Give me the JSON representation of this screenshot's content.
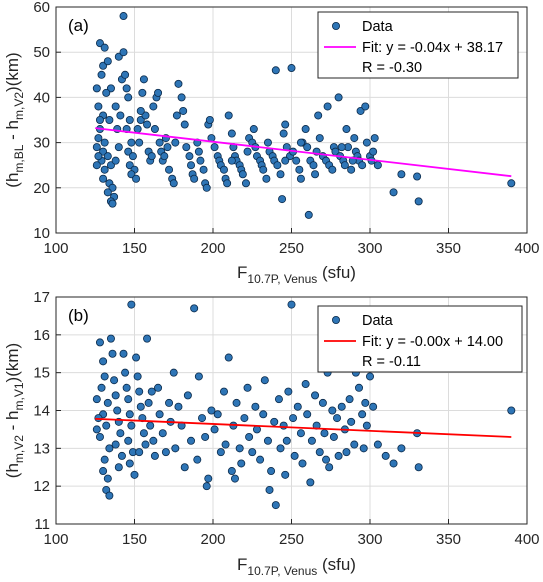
{
  "chart_data": [
    {
      "type": "scatter",
      "panel_label": "(a)",
      "xlabel": {
        "main": "F",
        "sub": "10.7P, Venus",
        "unit": " (sfu)"
      },
      "ylabel": {
        "main": "(h",
        "sub1": "m,BL",
        "mid": " - h",
        "sub2": "m,V2",
        "end": ")(km)"
      },
      "xlim": [
        100,
        400
      ],
      "ylim": [
        10,
        60
      ],
      "xticks": [
        "100",
        "150",
        "200",
        "250",
        "300",
        "350",
        "400"
      ],
      "yticks": [
        "10",
        "20",
        "30",
        "40",
        "50",
        "60"
      ],
      "grid": true,
      "legend_position": "top-right",
      "legend": {
        "data": "Data",
        "fit": "Fit: y = -0.04x + 38.17",
        "r": "R = -0.30"
      },
      "fit_line": {
        "color": "#ff00ff",
        "x": [
          125,
          390
        ],
        "y": [
          33.2,
          22.57
        ]
      },
      "marker_color": "#2e75b6",
      "points": [
        [
          128,
          52
        ],
        [
          131,
          51
        ],
        [
          130,
          47
        ],
        [
          133,
          48
        ],
        [
          129,
          45
        ],
        [
          135,
          42
        ],
        [
          132,
          41
        ],
        [
          130,
          36
        ],
        [
          134,
          35
        ],
        [
          128,
          33
        ],
        [
          131,
          30
        ],
        [
          130,
          28
        ],
        [
          133,
          27
        ],
        [
          129,
          26
        ],
        [
          135,
          25
        ],
        [
          131,
          24
        ],
        [
          130,
          22
        ],
        [
          134,
          21
        ],
        [
          136,
          20
        ],
        [
          133,
          19
        ],
        [
          137,
          18
        ],
        [
          135,
          17
        ],
        [
          136,
          16.5
        ],
        [
          138,
          26
        ],
        [
          140,
          29
        ],
        [
          139,
          33
        ],
        [
          141,
          36
        ],
        [
          138,
          38
        ],
        [
          142,
          44
        ],
        [
          140,
          49
        ],
        [
          143,
          50
        ],
        [
          144,
          45
        ],
        [
          145,
          42
        ],
        [
          146,
          40
        ],
        [
          147,
          35
        ],
        [
          145,
          33
        ],
        [
          148,
          30
        ],
        [
          146,
          28
        ],
        [
          149,
          27
        ],
        [
          147,
          25
        ],
        [
          150,
          24
        ],
        [
          148,
          23
        ],
        [
          151,
          22
        ],
        [
          153,
          30
        ],
        [
          152,
          33
        ],
        [
          154,
          35
        ],
        [
          155,
          41
        ],
        [
          156,
          44
        ],
        [
          157,
          36
        ],
        [
          158,
          34
        ],
        [
          159,
          28
        ],
        [
          160,
          26
        ],
        [
          161,
          27
        ],
        [
          163,
          33
        ],
        [
          162,
          38
        ],
        [
          164,
          40
        ],
        [
          165,
          41
        ],
        [
          166,
          30
        ],
        [
          167,
          28
        ],
        [
          168,
          26
        ],
        [
          170,
          31
        ],
        [
          171,
          29
        ],
        [
          169,
          27
        ],
        [
          172,
          24
        ],
        [
          174,
          22
        ],
        [
          175,
          21
        ],
        [
          176,
          30
        ],
        [
          177,
          36
        ],
        [
          178,
          43
        ],
        [
          180,
          40
        ],
        [
          181,
          37
        ],
        [
          182,
          34
        ],
        [
          183,
          29
        ],
        [
          185,
          27
        ],
        [
          186,
          25
        ],
        [
          187,
          23
        ],
        [
          188,
          22
        ],
        [
          190,
          30
        ],
        [
          191,
          28
        ],
        [
          192,
          26
        ],
        [
          194,
          24
        ],
        [
          195,
          21
        ],
        [
          196,
          20
        ],
        [
          197,
          34
        ],
        [
          198,
          35
        ],
        [
          199,
          31
        ],
        [
          201,
          29
        ],
        [
          203,
          27
        ],
        [
          204,
          26
        ],
        [
          205,
          25
        ],
        [
          207,
          24
        ],
        [
          208,
          22
        ],
        [
          209,
          21
        ],
        [
          210,
          36
        ],
        [
          212,
          32
        ],
        [
          213,
          29
        ],
        [
          214,
          27
        ],
        [
          215,
          26
        ],
        [
          217,
          25
        ],
        [
          218,
          24
        ],
        [
          219,
          23
        ],
        [
          221,
          21
        ],
        [
          222,
          28
        ],
        [
          223,
          31
        ],
        [
          225,
          30
        ],
        [
          226,
          33
        ],
        [
          227,
          29
        ],
        [
          228,
          27
        ],
        [
          230,
          26
        ],
        [
          231,
          25
        ],
        [
          232,
          24
        ],
        [
          234,
          22
        ],
        [
          235,
          30
        ],
        [
          236,
          28
        ],
        [
          238,
          27
        ],
        [
          239,
          26
        ],
        [
          240,
          46
        ],
        [
          241,
          25
        ],
        [
          243,
          23
        ],
        [
          244,
          17.5
        ],
        [
          245,
          32
        ],
        [
          246,
          34
        ],
        [
          247,
          29
        ],
        [
          249,
          27
        ],
        [
          250,
          46.5
        ],
        [
          251,
          28
        ],
        [
          253,
          26
        ],
        [
          255,
          24
        ],
        [
          256,
          22
        ],
        [
          257,
          30
        ],
        [
          259,
          33
        ],
        [
          260,
          29
        ],
        [
          261,
          14
        ],
        [
          262,
          26
        ],
        [
          264,
          25
        ],
        [
          265,
          23
        ],
        [
          266,
          28
        ],
        [
          267,
          36
        ],
        [
          268,
          31
        ],
        [
          270,
          27
        ],
        [
          272,
          26
        ],
        [
          273,
          38
        ],
        [
          274,
          25
        ],
        [
          276,
          24
        ],
        [
          277,
          29
        ],
        [
          278,
          28
        ],
        [
          280,
          40
        ],
        [
          281,
          27
        ],
        [
          283,
          26
        ],
        [
          284,
          25
        ],
        [
          285,
          33
        ],
        [
          286,
          29
        ],
        [
          288,
          24
        ],
        [
          290,
          31
        ],
        [
          291,
          28
        ],
        [
          292,
          27
        ],
        [
          293,
          26
        ],
        [
          294,
          37
        ],
        [
          295,
          25
        ],
        [
          297,
          38
        ],
        [
          298,
          30
        ],
        [
          300,
          27
        ],
        [
          301,
          26
        ],
        [
          303,
          31
        ],
        [
          305,
          25
        ],
        [
          315,
          19
        ],
        [
          320,
          23
        ],
        [
          330,
          22.5
        ],
        [
          331,
          17
        ],
        [
          390,
          21
        ],
        [
          126,
          42
        ],
        [
          127,
          38
        ],
        [
          128,
          35
        ],
        [
          127,
          31
        ],
        [
          126,
          29
        ],
        [
          127,
          27
        ],
        [
          126,
          25
        ],
        [
          143,
          58
        ],
        [
          154,
          37
        ],
        [
          212,
          26
        ],
        [
          246,
          26
        ],
        [
          256,
          30
        ],
        [
          282,
          29
        ],
        [
          289,
          26
        ],
        [
          302,
          28
        ]
      ]
    },
    {
      "type": "scatter",
      "panel_label": "(b)",
      "xlabel": {
        "main": "F",
        "sub": "10.7P, Venus",
        "unit": " (sfu)"
      },
      "ylabel": {
        "main": "(h",
        "sub1": "m,V2",
        "mid": " - h",
        "sub2": "m,V1",
        "end": ")(km)"
      },
      "xlim": [
        100,
        400
      ],
      "ylim": [
        11,
        17
      ],
      "xticks": [
        "100",
        "150",
        "200",
        "250",
        "300",
        "350",
        "400"
      ],
      "yticks": [
        "11",
        "12",
        "13",
        "14",
        "15",
        "16",
        "17"
      ],
      "grid": true,
      "legend_position": "top-right",
      "legend": {
        "data": "Data",
        "fit": "Fit: y = -0.00x + 14.00",
        "r": "R = -0.11"
      },
      "fit_line": {
        "color": "#ff0000",
        "x": [
          125,
          390
        ],
        "y": [
          13.78,
          13.3
        ]
      },
      "marker_color": "#2e75b6",
      "points": [
        [
          128,
          15.8
        ],
        [
          130,
          15.3
        ],
        [
          131,
          14.9
        ],
        [
          129,
          14.6
        ],
        [
          133,
          14.2
        ],
        [
          130,
          13.9
        ],
        [
          132,
          13.6
        ],
        [
          128,
          13.3
        ],
        [
          134,
          13.0
        ],
        [
          131,
          12.7
        ],
        [
          130,
          12.4
        ],
        [
          133,
          12.2
        ],
        [
          132,
          11.9
        ],
        [
          134,
          11.75
        ],
        [
          135,
          15.9
        ],
        [
          136,
          15.5
        ],
        [
          137,
          14.8
        ],
        [
          138,
          14.4
        ],
        [
          139,
          14.0
        ],
        [
          140,
          13.7
        ],
        [
          141,
          13.4
        ],
        [
          138,
          13.1
        ],
        [
          142,
          12.8
        ],
        [
          140,
          12.5
        ],
        [
          143,
          15.5
        ],
        [
          144,
          15.0
        ],
        [
          145,
          14.6
        ],
        [
          146,
          14.3
        ],
        [
          147,
          13.9
        ],
        [
          148,
          13.6
        ],
        [
          146,
          13.2
        ],
        [
          149,
          12.9
        ],
        [
          147,
          12.6
        ],
        [
          150,
          12.3
        ],
        [
          148,
          16.8
        ],
        [
          151,
          15.4
        ],
        [
          152,
          14.9
        ],
        [
          153,
          14.5
        ],
        [
          154,
          14.1
        ],
        [
          155,
          13.8
        ],
        [
          156,
          13.4
        ],
        [
          157,
          13.1
        ],
        [
          158,
          15.9
        ],
        [
          159,
          14.2
        ],
        [
          160,
          13.6
        ],
        [
          162,
          13.2
        ],
        [
          163,
          12.8
        ],
        [
          165,
          14.6
        ],
        [
          166,
          13.9
        ],
        [
          168,
          13.4
        ],
        [
          170,
          12.9
        ],
        [
          172,
          14.2
        ],
        [
          173,
          13.7
        ],
        [
          175,
          15.0
        ],
        [
          176,
          13.0
        ],
        [
          178,
          14.1
        ],
        [
          180,
          13.6
        ],
        [
          182,
          12.5
        ],
        [
          184,
          14.4
        ],
        [
          186,
          13.2
        ],
        [
          188,
          16.7
        ],
        [
          190,
          12.7
        ],
        [
          191,
          14.9
        ],
        [
          193,
          13.8
        ],
        [
          195,
          13.3
        ],
        [
          197,
          12.2
        ],
        [
          199,
          14.0
        ],
        [
          201,
          13.5
        ],
        [
          203,
          13.9
        ],
        [
          205,
          12.9
        ],
        [
          207,
          14.5
        ],
        [
          208,
          13.1
        ],
        [
          210,
          15.4
        ],
        [
          212,
          12.4
        ],
        [
          213,
          13.6
        ],
        [
          215,
          14.2
        ],
        [
          217,
          13.0
        ],
        [
          218,
          12.6
        ],
        [
          220,
          13.8
        ],
        [
          222,
          14.6
        ],
        [
          223,
          13.3
        ],
        [
          225,
          12.9
        ],
        [
          227,
          14.1
        ],
        [
          228,
          13.5
        ],
        [
          230,
          12.7
        ],
        [
          232,
          13.9
        ],
        [
          233,
          14.8
        ],
        [
          235,
          13.2
        ],
        [
          237,
          12.4
        ],
        [
          239,
          13.7
        ],
        [
          240,
          11.5
        ],
        [
          242,
          14.3
        ],
        [
          243,
          13.0
        ],
        [
          245,
          13.6
        ],
        [
          246,
          12.3
        ],
        [
          248,
          14.5
        ],
        [
          250,
          16.8
        ],
        [
          251,
          13.8
        ],
        [
          252,
          12.8
        ],
        [
          254,
          14.1
        ],
        [
          256,
          13.4
        ],
        [
          257,
          12.6
        ],
        [
          259,
          14.7
        ],
        [
          260,
          13.9
        ],
        [
          262,
          12.1
        ],
        [
          263,
          13.2
        ],
        [
          265,
          14.4
        ],
        [
          266,
          13.6
        ],
        [
          268,
          12.9
        ],
        [
          270,
          14.2
        ],
        [
          271,
          13.4
        ],
        [
          273,
          15.0
        ],
        [
          274,
          12.5
        ],
        [
          276,
          14.0
        ],
        [
          277,
          13.3
        ],
        [
          279,
          13.8
        ],
        [
          280,
          12.8
        ],
        [
          282,
          14.1
        ],
        [
          284,
          13.5
        ],
        [
          285,
          12.9
        ],
        [
          287,
          14.3
        ],
        [
          288,
          13.7
        ],
        [
          290,
          13.1
        ],
        [
          291,
          15.0
        ],
        [
          293,
          14.6
        ],
        [
          295,
          13.9
        ],
        [
          297,
          14.2
        ],
        [
          298,
          13.6
        ],
        [
          300,
          14.9
        ],
        [
          302,
          14.1
        ],
        [
          305,
          13.1
        ],
        [
          310,
          12.8
        ],
        [
          315,
          12.6
        ],
        [
          320,
          13.0
        ],
        [
          330,
          13.4
        ],
        [
          331,
          12.5
        ],
        [
          390,
          14.0
        ],
        [
          126,
          14.3
        ],
        [
          127,
          13.8
        ],
        [
          126,
          13.5
        ],
        [
          153,
          12.9
        ],
        [
          161,
          14.5
        ],
        [
          196,
          12.0
        ],
        [
          214,
          12.2
        ],
        [
          236,
          11.9
        ],
        [
          247,
          13.2
        ],
        [
          272,
          12.7
        ],
        [
          296,
          13.0
        ]
      ]
    }
  ]
}
